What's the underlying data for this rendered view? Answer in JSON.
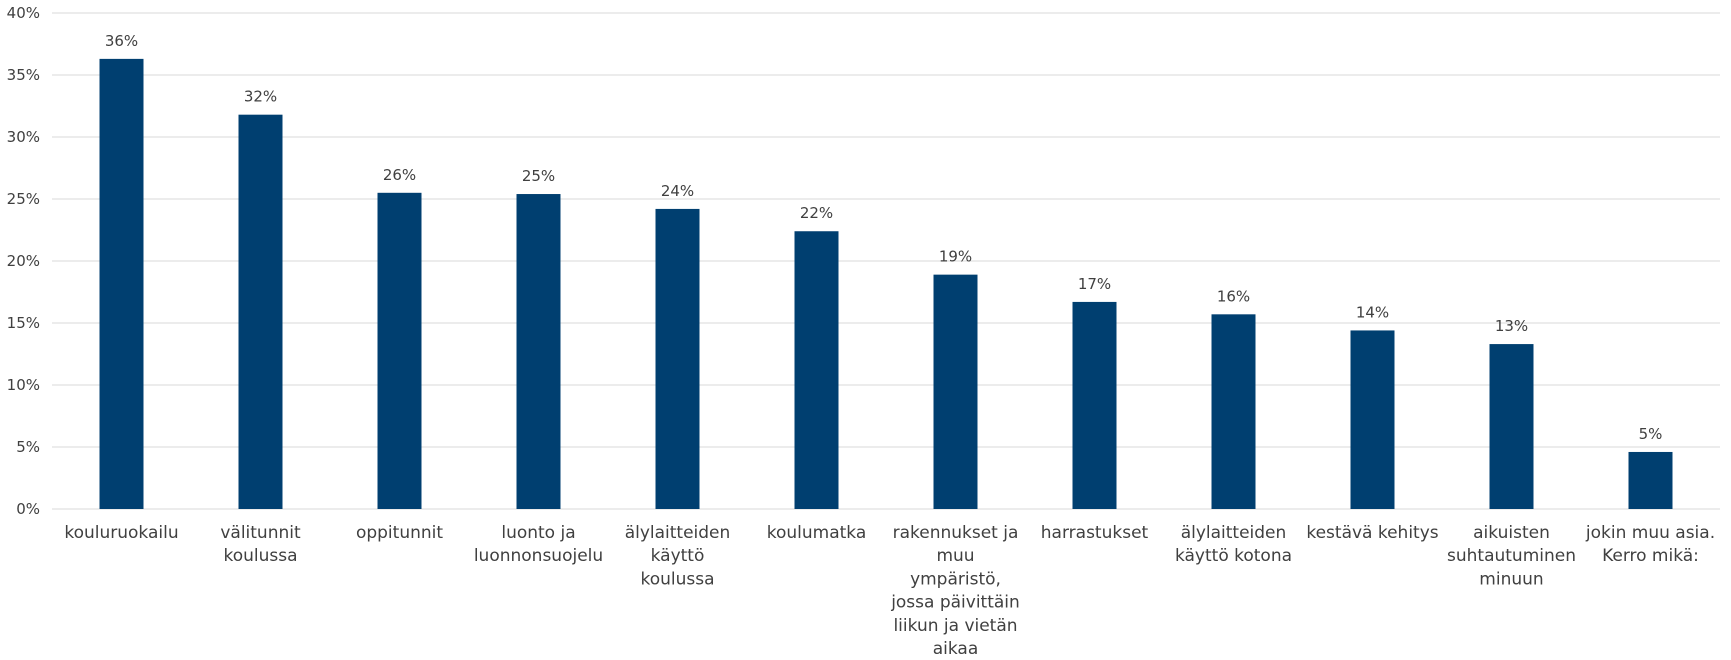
{
  "chart_data": {
    "type": "bar",
    "title": "",
    "xlabel": "",
    "ylabel": "",
    "ylim": [
      0,
      40
    ],
    "y_ticks": [
      0,
      5,
      10,
      15,
      20,
      25,
      30,
      35,
      40
    ],
    "y_tick_format": "percent",
    "grid": true,
    "legend": "none",
    "bar_color": "#003f70",
    "categories": [
      [
        "kouluruokailu"
      ],
      [
        "välitunnit",
        "koulussa"
      ],
      [
        "oppitunnit"
      ],
      [
        "luonto ja",
        "luonnonsuojelu"
      ],
      [
        "älylaitteiden",
        "käyttö",
        "koulussa"
      ],
      [
        "koulumatka"
      ],
      [
        "rakennukset ja",
        "muu",
        "ympäristö,",
        "jossa päivittäin",
        "liikun ja vietän",
        "aikaa"
      ],
      [
        "harrastukset"
      ],
      [
        "älylaitteiden",
        "käyttö kotona"
      ],
      [
        "kestävä kehitys"
      ],
      [
        "aikuisten",
        "suhtautuminen",
        "minuun"
      ],
      [
        "jokin muu asia.",
        "Kerro mikä:"
      ]
    ],
    "values": [
      36.3,
      31.8,
      25.5,
      25.4,
      24.2,
      22.4,
      18.9,
      16.7,
      15.7,
      14.4,
      13.3,
      4.6
    ],
    "data_labels": [
      "36%",
      "32%",
      "26%",
      "25%",
      "24%",
      "22%",
      "19%",
      "17%",
      "16%",
      "14%",
      "13%",
      "5%"
    ]
  }
}
